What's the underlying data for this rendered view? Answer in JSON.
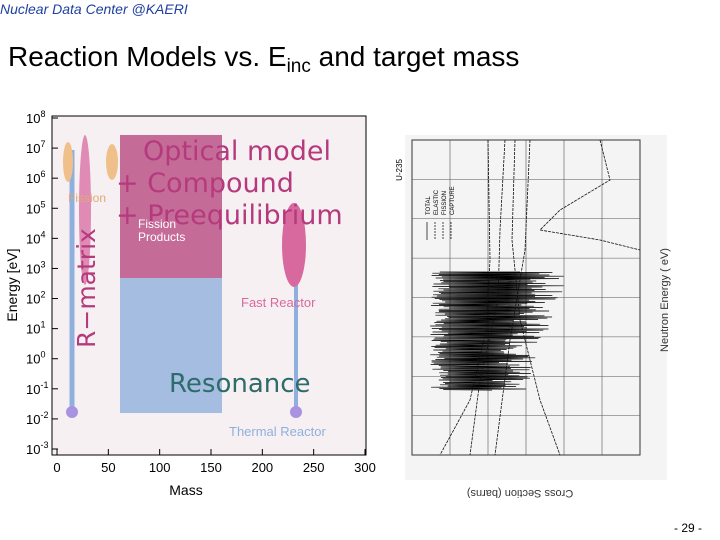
{
  "header": "Nuclear Data Center @KAERI",
  "title": {
    "main": "Reaction Models vs. E",
    "subscript": "inc",
    "rest": " and target mass"
  },
  "figure": {
    "xlabel": "Mass",
    "ylabel": "Energy [eV]",
    "xticks": [
      0,
      50,
      100,
      150,
      200,
      250,
      300
    ],
    "ytick_base": "10",
    "ytick_exponents": [
      -3,
      -2,
      -1,
      0,
      1,
      2,
      3,
      4,
      5,
      6,
      7,
      8
    ],
    "regions": {
      "optical": [
        "Optical model",
        "+ Compound",
        "+ Preequilibrium"
      ],
      "fission": "Fission",
      "fission_products": [
        "Fission",
        "Products"
      ],
      "rmatrix": "R−matrix",
      "fast_reactor": "Fast Reactor",
      "resonance": "Resonance",
      "thermal_reactor": "Thermal Reactor"
    }
  },
  "cross_section_plot": {
    "title": "U-235",
    "xlabel": "Neutron Energy ( eV)",
    "ylabel": "Cross Section (barns)",
    "legend": [
      "TOTAL",
      "ELASTIC",
      "FISSION",
      "CAPTURE"
    ]
  },
  "page_number": "- 29 -"
}
